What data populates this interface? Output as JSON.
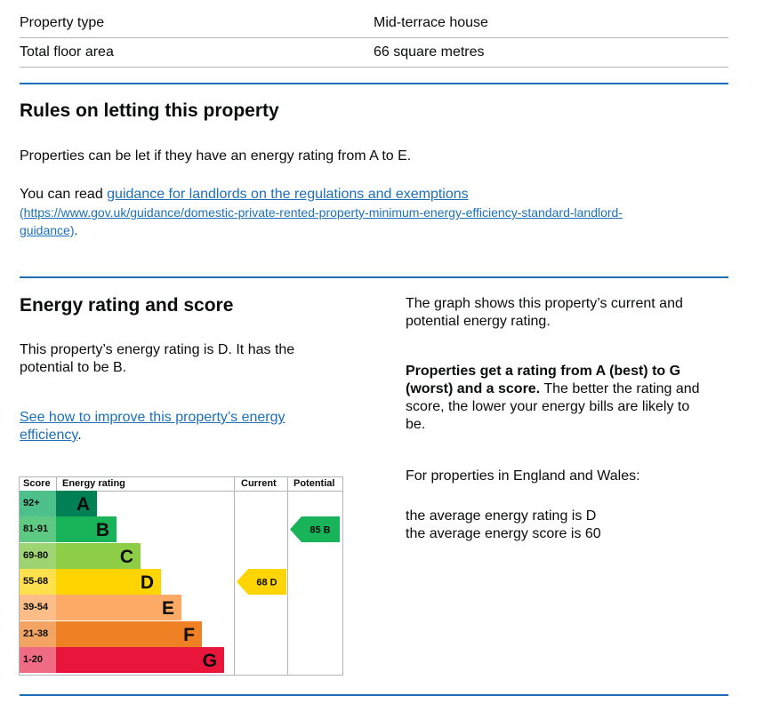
{
  "summary": {
    "rows": [
      {
        "label": "Property type",
        "value": "Mid-terrace house"
      },
      {
        "label": "Total floor area",
        "value": "66 square metres"
      }
    ]
  },
  "letting": {
    "heading": "Rules on letting this property",
    "para1": "Properties can be let if they have an energy rating from A to E.",
    "para2_prefix": "You can read ",
    "link_text": "guidance for landlords on the regulations and exemptions",
    "link_url_line1": "(https://www.gov.uk/guidance/domestic-private-rented-property-minimum-energy-efficiency-standard-landlord-",
    "link_url_line2": "guidance)",
    "link_suffix": "."
  },
  "energy": {
    "heading": "Energy rating and score",
    "para1": "This property’s energy rating is D. It has the potential to be B.",
    "improve_link_line1": "See how to improve this property’s energy",
    "improve_link_line2": "efficiency",
    "improve_suffix": ".",
    "right_para1": "The graph shows this property’s current and potential energy rating.",
    "right_bold": "Properties get a rating from A (best) to G (worst) and a score.",
    "right_rest": " The better the rating and score, the lower your energy bills are likely to be.",
    "england_wales": "For properties in England and Wales:",
    "avg_rating": "the average energy rating is D",
    "avg_score": "the average energy score is 60"
  },
  "chart_data": {
    "type": "table",
    "headers": {
      "score": "Score",
      "rating": "Energy rating",
      "current": "Current",
      "potential": "Potential"
    },
    "bands": [
      {
        "score": "92+",
        "letter": "A",
        "color": "#008054",
        "score_bg": "#4ec08b"
      },
      {
        "score": "81-91",
        "letter": "B",
        "color": "#19b459",
        "score_bg": "#5ec982"
      },
      {
        "score": "69-80",
        "letter": "C",
        "color": "#8dce46",
        "score_bg": "#9fd472"
      },
      {
        "score": "55-68",
        "letter": "D",
        "color": "#ffd500",
        "score_bg": "#ffe14d"
      },
      {
        "score": "39-54",
        "letter": "E",
        "color": "#fcaa65",
        "score_bg": "#fcbd89"
      },
      {
        "score": "21-38",
        "letter": "F",
        "color": "#ef8023",
        "score_bg": "#f3a463"
      },
      {
        "score": "1-20",
        "letter": "G",
        "color": "#e9153b",
        "score_bg": "#f06b84"
      }
    ],
    "current": {
      "score": 68,
      "rating": "D",
      "label": "68  D",
      "color": "#ffd500"
    },
    "potential": {
      "score": 85,
      "rating": "B",
      "label": "85  B",
      "color": "#19b459"
    }
  }
}
